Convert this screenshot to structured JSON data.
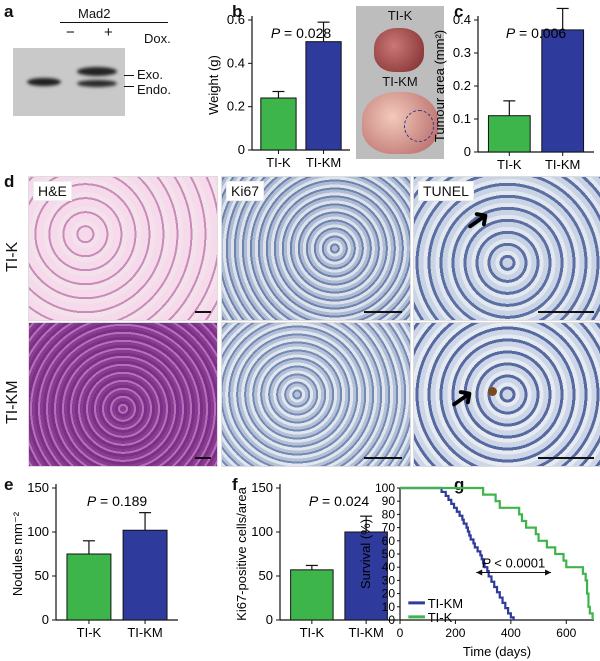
{
  "panel_letters": {
    "a": "a",
    "b": "b",
    "c": "c",
    "d": "d",
    "e": "e",
    "f": "f",
    "g": "g"
  },
  "panel_a": {
    "title": "Mad2",
    "minus": "−",
    "plus": "+",
    "condition": "Dox.",
    "band_exo": "Exo.",
    "band_endo": "Endo."
  },
  "panel_b_photo": {
    "label_top": "TI-K",
    "label_bottom": "TI-KM"
  },
  "micro": {
    "col1": "H&E",
    "col2": "Ki67",
    "col3": "TUNEL",
    "row1": "TI-K",
    "row2": "TI-KM"
  },
  "colors": {
    "green": "#3db54a",
    "blue": "#2e3a9c"
  },
  "chart_data": [
    {
      "id": "b",
      "type": "bar",
      "categories": [
        "TI-K",
        "TI-KM"
      ],
      "values": [
        0.24,
        0.5
      ],
      "errors": [
        0.03,
        0.09
      ],
      "ylabel": "Weight (g)",
      "ylim": [
        0,
        0.6
      ],
      "yticks": [
        0,
        0.2,
        0.4,
        0.6
      ],
      "pvalue": "P = 0.028"
    },
    {
      "id": "c",
      "type": "bar",
      "categories": [
        "TI-K",
        "TI-KM"
      ],
      "values": [
        0.11,
        0.37
      ],
      "errors": [
        0.045,
        0.065
      ],
      "ylabel": "Tumour area (mm²)",
      "ylim": [
        0,
        0.4
      ],
      "yticks": [
        0,
        0.1,
        0.2,
        0.3,
        0.4
      ],
      "pvalue": "P = 0.006"
    },
    {
      "id": "e",
      "type": "bar",
      "categories": [
        "TI-K",
        "TI-KM"
      ],
      "values": [
        75,
        102
      ],
      "errors": [
        15,
        20
      ],
      "ylabel": "Nodules mm⁻²",
      "ylim": [
        0,
        150
      ],
      "yticks": [
        0,
        50,
        100,
        150
      ],
      "pvalue": "P = 0.189"
    },
    {
      "id": "f",
      "type": "bar",
      "categories": [
        "TI-K",
        "TI-KM"
      ],
      "values": [
        57,
        100
      ],
      "errors": [
        5,
        18
      ],
      "ylabel": "Ki67-positive cells/area",
      "ylim": [
        0,
        150
      ],
      "yticks": [
        0,
        50,
        100,
        150
      ],
      "pvalue": "P = 0.024"
    },
    {
      "id": "g",
      "type": "line",
      "ylabel": "Survival (%)",
      "xlabel": "Time (days)",
      "xlim": [
        0,
        700
      ],
      "ylim": [
        0,
        100
      ],
      "xticks": [
        0,
        200,
        400,
        600
      ],
      "yticks": [
        0,
        10,
        20,
        30,
        40,
        50,
        60,
        70,
        80,
        90,
        100
      ],
      "pvalue": "P < 0.0001",
      "series": [
        {
          "name": "TI-KM",
          "steps": [
            [
              0,
              100
            ],
            [
              130,
              100
            ],
            [
              150,
              97
            ],
            [
              165,
              94
            ],
            [
              175,
              91
            ],
            [
              185,
              88
            ],
            [
              195,
              85
            ],
            [
              205,
              82
            ],
            [
              215,
              79
            ],
            [
              225,
              76
            ],
            [
              230,
              73
            ],
            [
              240,
              70
            ],
            [
              245,
              67
            ],
            [
              250,
              64
            ],
            [
              255,
              61
            ],
            [
              265,
              58
            ],
            [
              270,
              55
            ],
            [
              280,
              52
            ],
            [
              290,
              49
            ],
            [
              295,
              46
            ],
            [
              300,
              43
            ],
            [
              305,
              40
            ],
            [
              315,
              37
            ],
            [
              320,
              33
            ],
            [
              330,
              29
            ],
            [
              340,
              25
            ],
            [
              350,
              21
            ],
            [
              360,
              17
            ],
            [
              370,
              13
            ],
            [
              380,
              9
            ],
            [
              390,
              5
            ],
            [
              400,
              2
            ],
            [
              410,
              0
            ]
          ]
        },
        {
          "name": "TI-K",
          "steps": [
            [
              0,
              100
            ],
            [
              290,
              100
            ],
            [
              300,
              95
            ],
            [
              345,
              90
            ],
            [
              360,
              85
            ],
            [
              430,
              80
            ],
            [
              440,
              75
            ],
            [
              455,
              70
            ],
            [
              490,
              65
            ],
            [
              500,
              60
            ],
            [
              530,
              55
            ],
            [
              560,
              50
            ],
            [
              590,
              45
            ],
            [
              600,
              40
            ],
            [
              660,
              35
            ],
            [
              670,
              30
            ],
            [
              675,
              20
            ],
            [
              680,
              10
            ],
            [
              685,
              5
            ],
            [
              695,
              0
            ]
          ]
        }
      ]
    }
  ]
}
